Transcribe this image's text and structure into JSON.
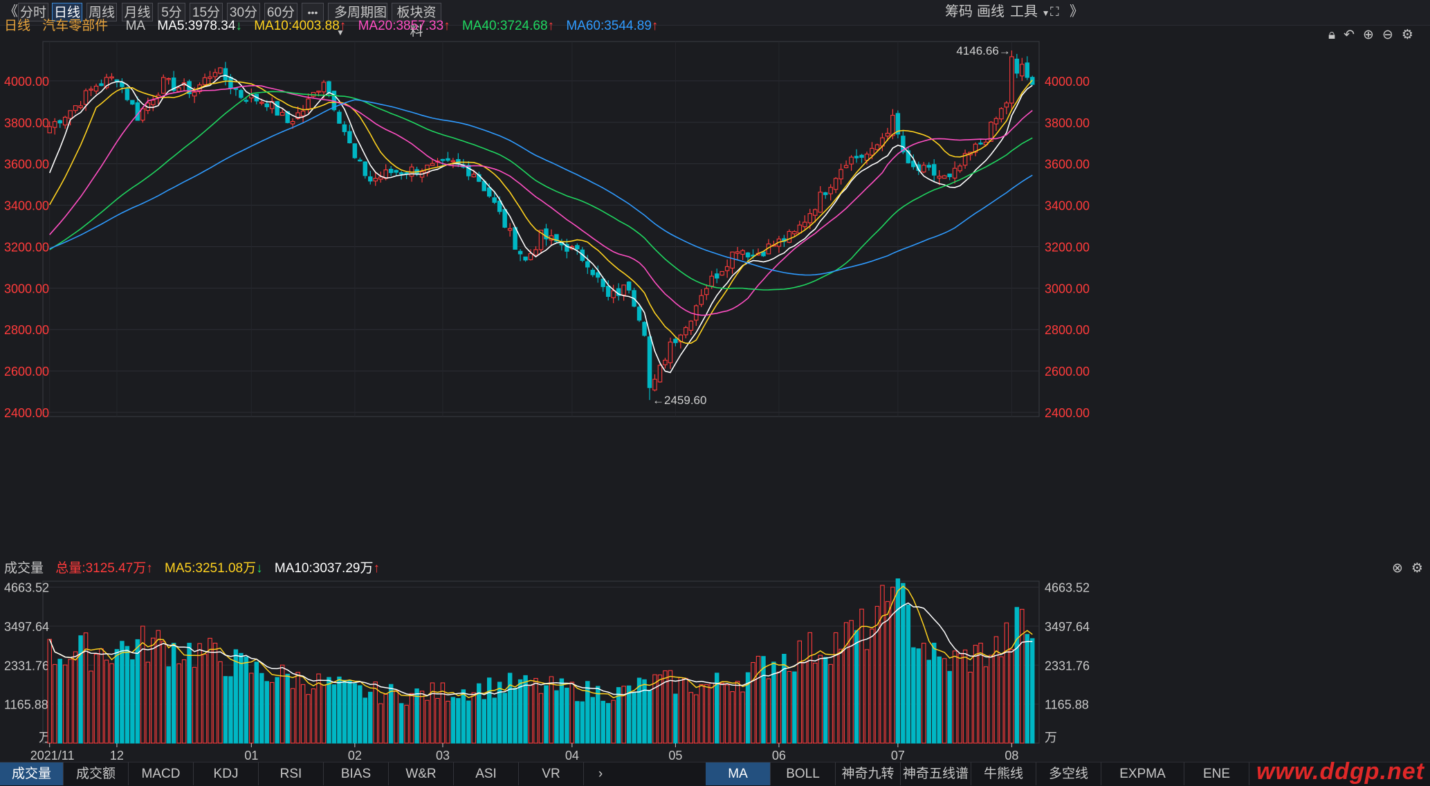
{
  "toolbar": {
    "back_icon": "《",
    "periods": [
      "分时",
      "日线",
      "周线",
      "月线",
      "5分",
      "15分",
      "30分",
      "60分"
    ],
    "active_period": "日线",
    "more_label": "•••",
    "multi_period": "多周期图",
    "sector_info": "板块资料",
    "chips_label": "筹码",
    "draw_label": "画线",
    "tools_label": "工具",
    "fullscreen_icon": "⛶",
    "forward_icon": "》"
  },
  "main_legend": {
    "period": "日线",
    "name": "汽车零部件",
    "indicator": "MA",
    "ma5": "MA5:3978.34",
    "ma10": "MA10:4003.88",
    "ma20": "MA20:3857.33",
    "ma40": "MA40:3724.68",
    "ma60": "MA60:3544.89",
    "ma5_arrow": "↓",
    "ma10_arrow": "↑",
    "ma20_arrow": "↑",
    "ma40_arrow": "↑",
    "ma60_arrow": "↑"
  },
  "vol_legend": {
    "title": "成交量",
    "total": "总量:3125.47万",
    "total_arrow": "↑",
    "ma5": "MA5:3251.08万",
    "ma5_arrow": "↓",
    "ma10": "MA10:3037.29万",
    "ma10_arrow": "↑"
  },
  "colors": {
    "up": "#ff3b3b",
    "down": "#00b7c4",
    "ma5": "#ffffff",
    "ma10": "#ffd21f",
    "ma20": "#ff4fc3",
    "ma40": "#1fd760",
    "ma60": "#2f9bff"
  },
  "bottom_tabs_left": [
    "成交量",
    "成交额",
    "MACD",
    "KDJ",
    "RSI",
    "BIAS",
    "W&R",
    "ASI",
    "VR"
  ],
  "bottom_tabs_right": [
    "MA",
    "BOLL",
    "神奇九转",
    "神奇五线谱",
    "牛熊线",
    "多空线",
    "EXPMA",
    "ENE"
  ],
  "active_left_tab": "成交量",
  "active_right_tab": "MA",
  "watermark": "www.ddgp.net",
  "chart_data": [
    {
      "type": "candlestick",
      "title": "汽车零部件",
      "price_axis_ticks": [
        "4000.00",
        "3800.00",
        "3600.00",
        "3400.00",
        "3200.00",
        "3000.00",
        "2800.00",
        "2600.00",
        "2400.00"
      ],
      "ylim": [
        2380,
        4190
      ],
      "x_tick_labels": [
        "2021/11",
        "12",
        "01",
        "02",
        "03",
        "04",
        "05",
        "06",
        "07",
        "08"
      ],
      "x_tick_days": [
        0,
        13,
        39,
        59,
        76,
        101,
        121,
        141,
        164,
        186
      ],
      "days": 191,
      "annotations": {
        "high": "4146.66→",
        "high_day": 186,
        "high_value": 4146.66,
        "low": "←2459.60",
        "low_day": 116,
        "low_value": 2459.6
      },
      "anchors": [
        [
          0,
          3780
        ],
        [
          5,
          3880
        ],
        [
          9,
          3980
        ],
        [
          13,
          4020
        ],
        [
          17,
          3830
        ],
        [
          22,
          3990
        ],
        [
          28,
          3950
        ],
        [
          32,
          4060
        ],
        [
          37,
          3930
        ],
        [
          42,
          3900
        ],
        [
          46,
          3800
        ],
        [
          49,
          3860
        ],
        [
          53,
          4010
        ],
        [
          57,
          3760
        ],
        [
          59,
          3620
        ],
        [
          62,
          3520
        ],
        [
          66,
          3560
        ],
        [
          70,
          3570
        ],
        [
          74,
          3580
        ],
        [
          78,
          3600
        ],
        [
          82,
          3560
        ],
        [
          85,
          3450
        ],
        [
          89,
          3260
        ],
        [
          92,
          3130
        ],
        [
          95,
          3250
        ],
        [
          100,
          3200
        ],
        [
          104,
          3130
        ],
        [
          108,
          2950
        ],
        [
          112,
          3010
        ],
        [
          115,
          2800
        ],
        [
          117,
          2540
        ],
        [
          120,
          2740
        ],
        [
          123,
          2810
        ],
        [
          126,
          2980
        ],
        [
          130,
          3100
        ],
        [
          133,
          3200
        ],
        [
          136,
          3160
        ],
        [
          140,
          3210
        ],
        [
          144,
          3260
        ],
        [
          149,
          3440
        ],
        [
          154,
          3620
        ],
        [
          159,
          3650
        ],
        [
          163,
          3810
        ],
        [
          166,
          3580
        ],
        [
          170,
          3560
        ],
        [
          174,
          3520
        ],
        [
          177,
          3620
        ],
        [
          181,
          3730
        ],
        [
          185,
          3900
        ],
        [
          188,
          4080
        ],
        [
          190,
          3960
        ]
      ],
      "ma_endpoints": {
        "ma5": 3978.34,
        "ma10": 4003.88,
        "ma20": 3857.33,
        "ma40": 3724.68,
        "ma60": 3544.89
      },
      "ma_start": {
        "ma5": 3500,
        "ma10": 3360,
        "ma20": 3230,
        "ma40": 3170,
        "ma60": 3180
      }
    },
    {
      "type": "bar",
      "title": "成交量",
      "unit": "万",
      "volume_axis_ticks": [
        "4663.52",
        "3497.64",
        "2331.76",
        "1165.88"
      ],
      "ylim": [
        0,
        4800
      ],
      "last_total": 3125.47,
      "ma5_last": 3251.08,
      "ma10_last": 3037.29,
      "volume_levels": [
        [
          0,
          2600
        ],
        [
          10,
          2700
        ],
        [
          20,
          2900
        ],
        [
          30,
          2600
        ],
        [
          40,
          2100
        ],
        [
          50,
          1800
        ],
        [
          60,
          1500
        ],
        [
          70,
          1400
        ],
        [
          80,
          1550
        ],
        [
          90,
          1700
        ],
        [
          100,
          1550
        ],
        [
          110,
          1450
        ],
        [
          118,
          1800
        ],
        [
          126,
          1650
        ],
        [
          134,
          1900
        ],
        [
          140,
          2400
        ],
        [
          147,
          2700
        ],
        [
          154,
          3100
        ],
        [
          160,
          3400
        ],
        [
          163,
          4600
        ],
        [
          167,
          3300
        ],
        [
          172,
          2300
        ],
        [
          178,
          2500
        ],
        [
          184,
          2800
        ],
        [
          188,
          3500
        ],
        [
          190,
          3125
        ]
      ]
    }
  ]
}
